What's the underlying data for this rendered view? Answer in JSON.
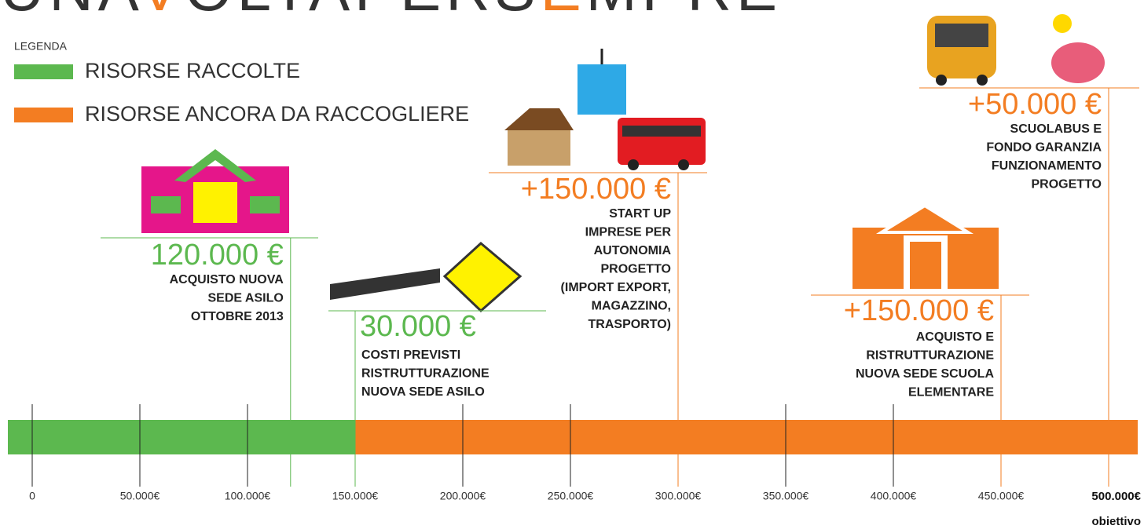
{
  "title": "UNAVOLTAPERSEMPRE",
  "legend": {
    "heading": "LEGENDA",
    "collected": "RISORSE RACCOLTE",
    "remaining": "RISORSE ANCORA DA RACCOGLIERE"
  },
  "axis": {
    "xlim": [
      0,
      500000
    ],
    "ticks": [
      {
        "value": 0,
        "label": "0"
      },
      {
        "value": 50000,
        "label": "50.000€"
      },
      {
        "value": 100000,
        "label": "100.000€"
      },
      {
        "value": 150000,
        "label": "150.000€"
      },
      {
        "value": 200000,
        "label": "200.000€"
      },
      {
        "value": 250000,
        "label": "250.000€"
      },
      {
        "value": 300000,
        "label": "300.000€"
      },
      {
        "value": 350000,
        "label": "350.000€"
      },
      {
        "value": 400000,
        "label": "400.000€"
      },
      {
        "value": 450000,
        "label": "450.000€"
      },
      {
        "value": 500000,
        "label": "500.000€"
      }
    ],
    "goal": "obiettivo"
  },
  "segments": [
    {
      "name": "collected",
      "value": 150000,
      "color": "#5cb84f"
    },
    {
      "name": "remaining",
      "value": 350000,
      "color": "#f37d22"
    }
  ],
  "milestones": [
    {
      "at": 120000,
      "amount": "120.000 €",
      "color": "#5cb84f",
      "lines": [
        "ACQUISTO NUOVA",
        "SEDE ASILO",
        "OTTOBRE 2013"
      ]
    },
    {
      "at": 150000,
      "amount": "30.000 €",
      "color": "#5cb84f",
      "lines": [
        "COSTI  PREVISTI",
        "RISTRUTTURAZIONE",
        "NUOVA SEDE ASILO"
      ]
    },
    {
      "at": 300000,
      "amount": "+150.000 €",
      "color": "#f37d22",
      "lines": [
        "START UP",
        "IMPRESE PER",
        "AUTONOMIA",
        "PROGETTO",
        "(IMPORT EXPORT,",
        "MAGAZZINO,",
        "TRASPORTO)"
      ]
    },
    {
      "at": 450000,
      "amount": "+150.000 €",
      "color": "#f37d22",
      "lines": [
        "ACQUISTO  E",
        "RISTRUTTURAZIONE",
        "NUOVA SEDE SCUOLA",
        "ELEMENTARE"
      ]
    },
    {
      "at": 500000,
      "amount": "+50.000 €",
      "color": "#f37d22",
      "lines": [
        "SCUOLABUS E",
        "FONDO GARANZIA",
        "FUNZIONAMENTO",
        "PROGETTO"
      ]
    }
  ]
}
